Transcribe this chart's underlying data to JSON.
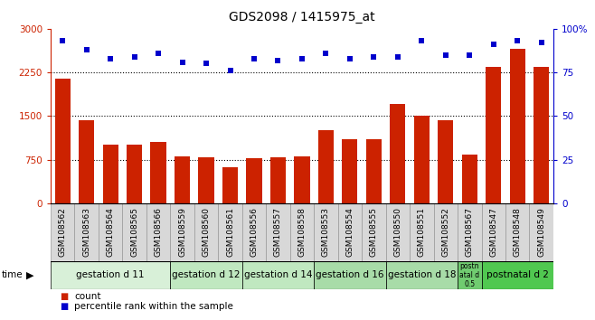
{
  "title": "GDS2098 / 1415975_at",
  "samples": [
    "GSM108562",
    "GSM108563",
    "GSM108564",
    "GSM108565",
    "GSM108566",
    "GSM108559",
    "GSM108560",
    "GSM108561",
    "GSM108556",
    "GSM108557",
    "GSM108558",
    "GSM108553",
    "GSM108554",
    "GSM108555",
    "GSM108550",
    "GSM108551",
    "GSM108552",
    "GSM108567",
    "GSM108547",
    "GSM108548",
    "GSM108549"
  ],
  "counts": [
    2150,
    1430,
    1000,
    1000,
    1050,
    800,
    790,
    620,
    780,
    790,
    800,
    1250,
    1100,
    1100,
    1700,
    1500,
    1430,
    830,
    2350,
    2650,
    2350
  ],
  "percentiles": [
    93,
    88,
    83,
    84,
    86,
    81,
    80,
    76,
    83,
    82,
    83,
    86,
    83,
    84,
    84,
    93,
    85,
    85,
    91,
    93,
    92
  ],
  "bar_color": "#cc2200",
  "dot_color": "#0000cc",
  "ylim_left": [
    0,
    3000
  ],
  "ylim_right": [
    0,
    100
  ],
  "yticks_left": [
    0,
    750,
    1500,
    2250,
    3000
  ],
  "yticks_right": [
    0,
    25,
    50,
    75,
    100
  ],
  "ytick_right_labels": [
    "0",
    "25",
    "50",
    "75",
    "100%"
  ],
  "groups": [
    {
      "label": "gestation d 11",
      "start": 0,
      "end": 5,
      "color": "#d8f0d8"
    },
    {
      "label": "gestation d 12",
      "start": 5,
      "end": 8,
      "color": "#c0e8c0"
    },
    {
      "label": "gestation d 14",
      "start": 8,
      "end": 11,
      "color": "#c0e8c0"
    },
    {
      "label": "gestation d 16",
      "start": 11,
      "end": 14,
      "color": "#a8dca8"
    },
    {
      "label": "gestation d 18",
      "start": 14,
      "end": 17,
      "color": "#a8dca8"
    },
    {
      "label": "postn\natal d\n0.5",
      "start": 17,
      "end": 18,
      "color": "#70cc70"
    },
    {
      "label": "postnatal d 2",
      "start": 18,
      "end": 21,
      "color": "#50c850"
    }
  ],
  "time_label": "time",
  "legend_count": "count",
  "legend_pct": "percentile rank within the sample",
  "sample_fontsize": 6.5,
  "title_fontsize": 10,
  "tick_fontsize": 7.5,
  "group_fontsize": 7.5
}
